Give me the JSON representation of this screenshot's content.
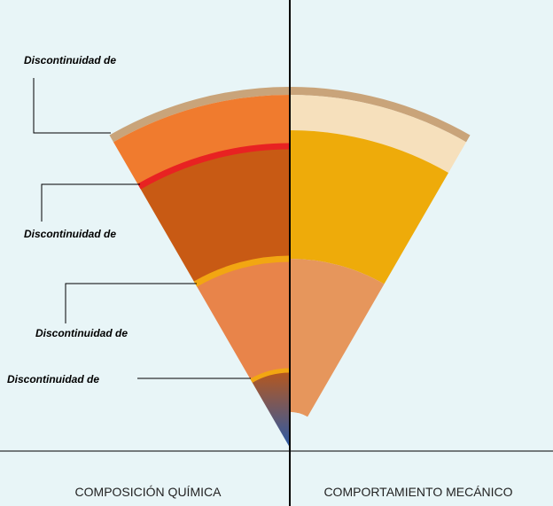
{
  "labels": [
    "Discontinuidad de",
    "Discontinuidad de",
    "Discontinuidad de",
    "Discontinuidad de"
  ],
  "footer": {
    "left": "COMPOSICIÓN QUÍMICA",
    "right": "COMPORTAMIENTO MECÁNICO"
  }
}
